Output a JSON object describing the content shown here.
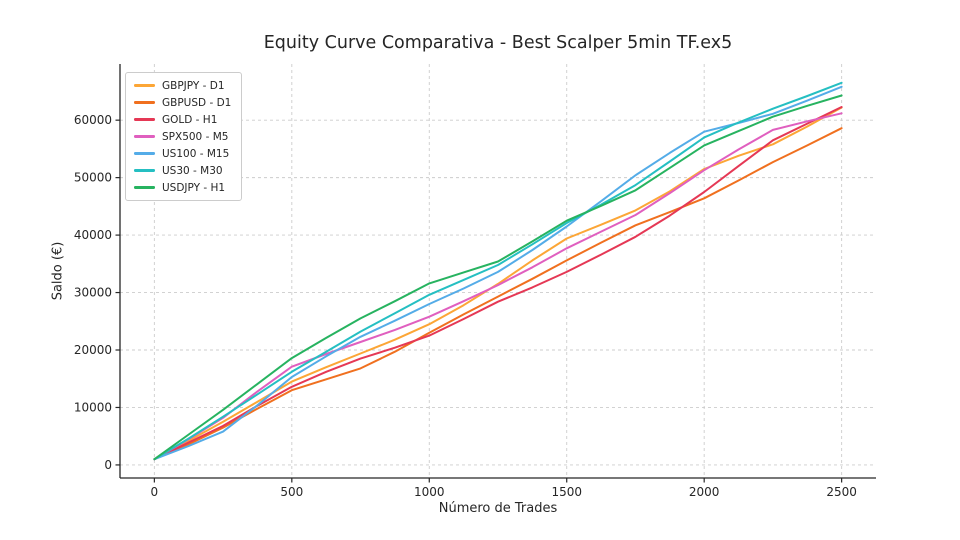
{
  "title": "Equity Curve Comparativa - Best Scalper 5min TF.ex5",
  "chart_data": {
    "type": "line",
    "title": "Equity Curve Comparativa - Best Scalper 5min TF.ex5",
    "xlabel": "Número de Trades",
    "ylabel": "Saldo (€)",
    "grid": true,
    "grid_style": "dashed",
    "legend_position": "upper left",
    "xlim": [
      -125,
      2625
    ],
    "ylim": [
      -2275,
      69775
    ],
    "xticks": [
      0,
      500,
      1000,
      1500,
      2000,
      2500
    ],
    "yticks": [
      0,
      10000,
      20000,
      30000,
      40000,
      50000,
      60000
    ],
    "x": [
      0,
      125,
      250,
      375,
      500,
      625,
      750,
      875,
      1000,
      1125,
      1250,
      1375,
      1500,
      1625,
      1750,
      1875,
      2000,
      2125,
      2250,
      2375,
      2500
    ],
    "series": [
      {
        "name": "GBPJPY - D1",
        "color": "#FCA636",
        "values": [
          1000,
          4200,
          7500,
          11000,
          14500,
          17000,
          19400,
          21800,
          24500,
          27800,
          31500,
          35600,
          39400,
          41800,
          44300,
          47600,
          51500,
          53800,
          55800,
          58900,
          62200
        ]
      },
      {
        "name": "GBPUSD - D1",
        "color": "#F0701F",
        "values": [
          1000,
          3600,
          6500,
          9800,
          13000,
          14900,
          16800,
          19700,
          23000,
          26200,
          29300,
          32400,
          35600,
          38700,
          41700,
          44000,
          46400,
          49500,
          52700,
          55600,
          58600
        ]
      },
      {
        "name": "GOLD - H1",
        "color": "#E53855",
        "values": [
          1000,
          3900,
          6800,
          10300,
          13600,
          16200,
          18500,
          20400,
          22500,
          25400,
          28400,
          30900,
          33600,
          36600,
          39700,
          43400,
          47500,
          52000,
          56500,
          59400,
          62300
        ]
      },
      {
        "name": "SPX500 - M5",
        "color": "#E05FBF",
        "values": [
          1000,
          4500,
          8200,
          12800,
          17100,
          19300,
          21400,
          23500,
          25800,
          28500,
          31300,
          34400,
          37700,
          40600,
          43500,
          47300,
          51300,
          54900,
          58300,
          59800,
          61200
        ]
      },
      {
        "name": "US100 - M15",
        "color": "#54ACE8",
        "values": [
          1000,
          3300,
          5800,
          10400,
          15300,
          18900,
          22300,
          25100,
          28000,
          30700,
          33600,
          37400,
          41500,
          45900,
          50400,
          54300,
          58000,
          59500,
          61100,
          63400,
          65800
        ]
      },
      {
        "name": "US30 - M30",
        "color": "#25BFC2",
        "values": [
          1000,
          4600,
          8400,
          12300,
          16200,
          19700,
          23200,
          26400,
          29600,
          32200,
          34800,
          38400,
          42100,
          45300,
          48700,
          52800,
          57000,
          59600,
          62000,
          64200,
          66500
        ]
      },
      {
        "name": "USDJPY - H1",
        "color": "#27B360",
        "values": [
          1000,
          5300,
          9600,
          14100,
          18600,
          22100,
          25500,
          28500,
          31600,
          33500,
          35400,
          38900,
          42500,
          45100,
          47800,
          51700,
          55600,
          58100,
          60600,
          62500,
          64300
        ]
      }
    ]
  }
}
